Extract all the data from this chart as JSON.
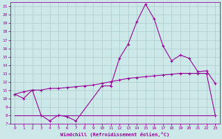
{
  "xlabel": "Windchill (Refroidissement éolien,°C)",
  "xlim": [
    -0.5,
    23.5
  ],
  "ylim": [
    7,
    21.5
  ],
  "yticks": [
    7,
    8,
    9,
    10,
    11,
    12,
    13,
    14,
    15,
    16,
    17,
    18,
    19,
    20,
    21
  ],
  "xticks": [
    0,
    1,
    2,
    3,
    4,
    5,
    6,
    7,
    8,
    9,
    10,
    11,
    12,
    13,
    14,
    15,
    16,
    17,
    18,
    19,
    20,
    21,
    22,
    23
  ],
  "bg_color": "#cce8e8",
  "line_color": "#990099",
  "grid_color": "#aacccc",
  "line1_x": [
    0,
    1,
    2,
    3,
    4,
    5,
    6,
    7,
    10,
    11,
    12,
    13,
    14,
    15,
    16,
    17,
    18,
    19,
    20,
    21,
    22,
    23
  ],
  "line1_y": [
    10.5,
    10.0,
    11.0,
    8.0,
    7.3,
    8.0,
    7.8,
    7.3,
    11.5,
    11.5,
    14.8,
    16.5,
    19.2,
    21.3,
    19.5,
    16.3,
    14.5,
    15.2,
    14.8,
    13.2,
    13.3,
    11.8
  ],
  "line2_x": [
    0,
    1,
    2,
    3,
    4,
    5,
    6,
    7,
    8,
    9,
    10,
    11,
    12,
    13,
    14,
    15,
    16,
    17,
    18,
    19,
    20,
    21,
    22,
    23
  ],
  "line2_y": [
    10.5,
    10.8,
    11.0,
    11.0,
    11.2,
    11.2,
    11.3,
    11.4,
    11.5,
    11.6,
    11.8,
    12.0,
    12.2,
    12.4,
    12.5,
    12.6,
    12.7,
    12.8,
    12.9,
    13.0,
    13.0,
    13.0,
    13.0,
    8.0
  ],
  "line3_x": [
    0,
    1,
    2,
    3,
    4,
    5,
    6,
    7,
    8,
    9,
    10,
    11,
    12,
    13,
    14,
    15,
    16,
    17,
    18,
    19,
    20,
    21,
    22,
    23
  ],
  "line3_y": [
    8.0,
    8.0,
    8.0,
    8.0,
    8.0,
    8.0,
    8.0,
    8.0,
    8.0,
    8.0,
    8.0,
    8.0,
    8.0,
    8.0,
    8.0,
    8.0,
    8.0,
    8.0,
    8.0,
    8.0,
    8.0,
    8.0,
    8.0,
    8.0
  ]
}
